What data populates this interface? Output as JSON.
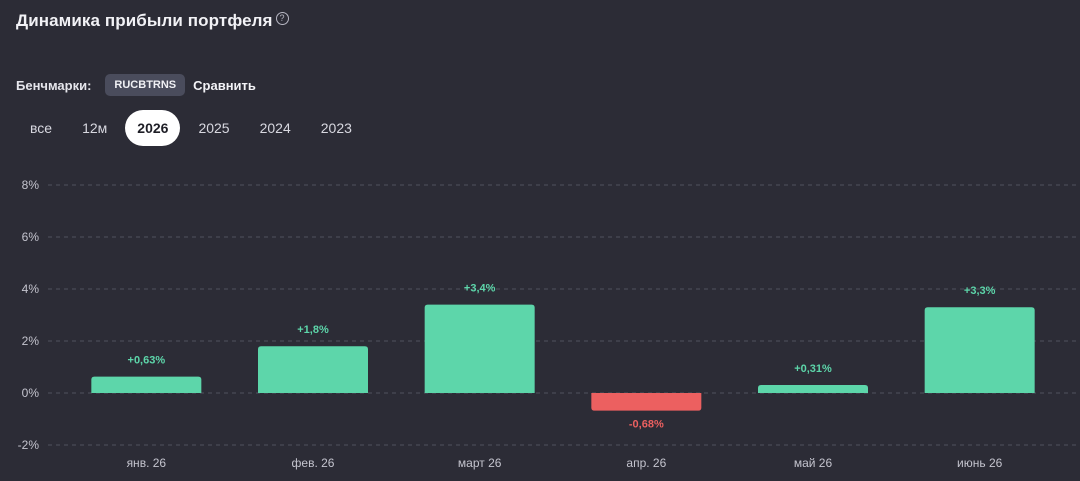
{
  "header": {
    "title": "Динамика прибыли портфеля",
    "help_icon": "question-circle-icon"
  },
  "benchmarks": {
    "label": "Бенчмарки:",
    "chip": "RUCBTRNS",
    "compare": "Сравнить"
  },
  "periods": [
    {
      "label": "все",
      "active": false
    },
    {
      "label": "12м",
      "active": false
    },
    {
      "label": "2026",
      "active": true
    },
    {
      "label": "2025",
      "active": false
    },
    {
      "label": "2024",
      "active": false
    },
    {
      "label": "2023",
      "active": false
    }
  ],
  "colors": {
    "positive": "#5dd6aa",
    "negative": "#ec6060",
    "positive_label": "#5dd6aa",
    "negative_label": "#ec6060"
  },
  "chart_data": {
    "type": "bar",
    "categories": [
      "янв. 26",
      "фев. 26",
      "март 26",
      "апр. 26",
      "май 26",
      "июнь 26"
    ],
    "values": [
      0.63,
      1.8,
      3.4,
      -0.68,
      0.31,
      3.3
    ],
    "value_labels": [
      "+0,63%",
      "+1,8%",
      "+3,4%",
      "-0,68%",
      "+0,31%",
      "+3,3%"
    ],
    "ylim": [
      -2,
      8
    ],
    "yticks": [
      -2,
      0,
      2,
      4,
      6,
      8
    ],
    "ytick_labels": [
      "-2%",
      "0%",
      "2%",
      "4%",
      "6%",
      "8%"
    ],
    "grid": true
  }
}
